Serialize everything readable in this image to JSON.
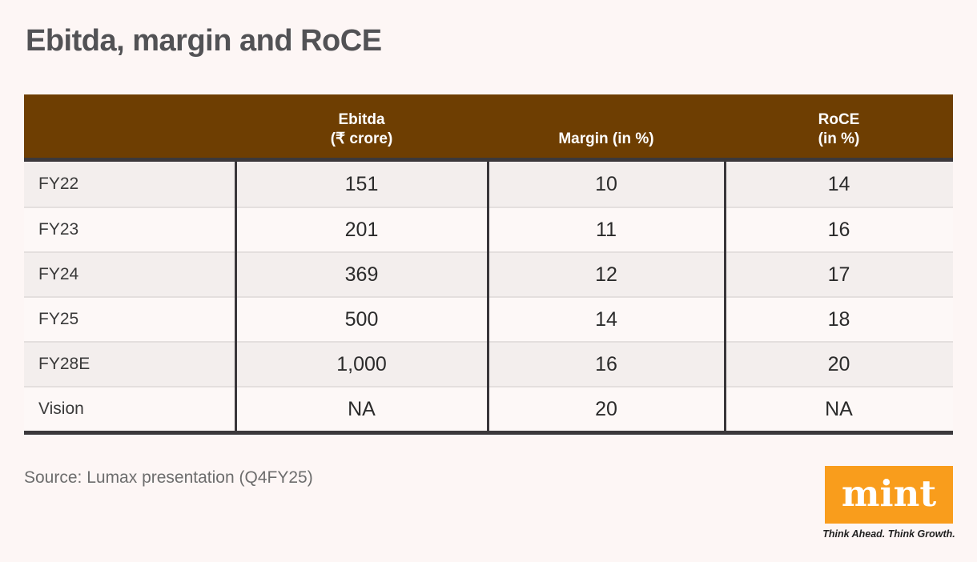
{
  "title": "Ebitda, margin and RoCE",
  "table": {
    "header": {
      "col0": "",
      "col1_line1": "Ebitda",
      "col1_line2": "(₹ crore)",
      "col2": "Margin (in %)",
      "col3_line1": "RoCE",
      "col3_line2": "(in %)"
    },
    "rows": [
      {
        "label": "FY22",
        "ebitda": "151",
        "margin": "10",
        "roce": "14"
      },
      {
        "label": "FY23",
        "ebitda": "201",
        "margin": "11",
        "roce": "16"
      },
      {
        "label": "FY24",
        "ebitda": "369",
        "margin": "12",
        "roce": "17"
      },
      {
        "label": "FY25",
        "ebitda": "500",
        "margin": "14",
        "roce": "18"
      },
      {
        "label": "FY28E",
        "ebitda": "1,000",
        "margin": "16",
        "roce": "20"
      },
      {
        "label": "Vision",
        "ebitda": "NA",
        "margin": "20",
        "roce": "NA"
      }
    ]
  },
  "chart_data": {
    "type": "table",
    "title": "Ebitda, margin and RoCE",
    "columns": [
      "",
      "Ebitda (₹ crore)",
      "Margin (in %)",
      "RoCE (in %)"
    ],
    "rows": [
      [
        "FY22",
        "151",
        "10",
        "14"
      ],
      [
        "FY23",
        "201",
        "11",
        "16"
      ],
      [
        "FY24",
        "369",
        "12",
        "17"
      ],
      [
        "FY25",
        "500",
        "14",
        "18"
      ],
      [
        "FY28E",
        "1,000",
        "16",
        "20"
      ],
      [
        "Vision",
        "NA",
        "20",
        "NA"
      ]
    ],
    "source": "Source: Lumax presentation (Q4FY25)"
  },
  "footer": {
    "source": "Source: Lumax presentation (Q4FY25)",
    "logo_text": "mint",
    "tagline": "Think Ahead. Think Growth."
  },
  "colors": {
    "background": "#fdf6f5",
    "header_brown": "#6e3e02",
    "dark_line": "#3b383b",
    "row_light": "#fdf8f7",
    "row_shaded": "#f3eeed",
    "row_separator": "#e4dfde",
    "title_text": "#525255",
    "value_text": "#2b2b2b",
    "source_text": "#6d6d6d",
    "mint_orange": "#f99d1c",
    "header_text": "#ffffff"
  }
}
